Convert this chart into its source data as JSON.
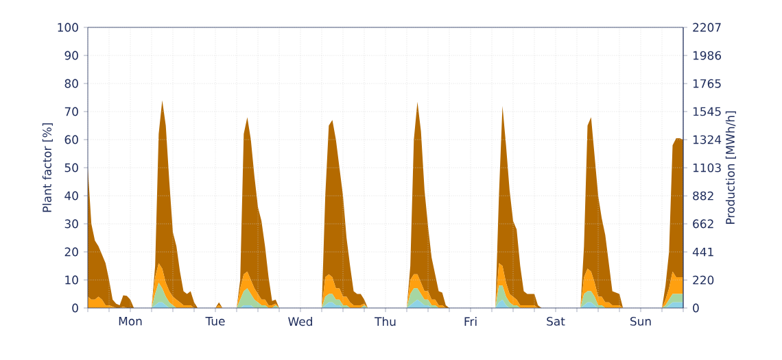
{
  "chart_data": {
    "type": "area",
    "stacked": true,
    "ylabel": "Plant factor [%]",
    "y2label": "Production [MWh/h]",
    "categories": [
      null,
      null,
      null,
      null,
      null,
      null,
      null,
      null,
      null,
      null,
      null,
      null,
      "Mon",
      null,
      null,
      null,
      null,
      null,
      null,
      null,
      null,
      null,
      null,
      null,
      null,
      null,
      null,
      null,
      null,
      null,
      null,
      null,
      null,
      null,
      null,
      null,
      "Tue",
      null,
      null,
      null,
      null,
      null,
      null,
      null,
      null,
      null,
      null,
      null,
      null,
      null,
      null,
      null,
      null,
      null,
      null,
      null,
      null,
      null,
      null,
      null,
      "Wed",
      null,
      null,
      null,
      null,
      null,
      null,
      null,
      null,
      null,
      null,
      null,
      null,
      null,
      null,
      null,
      null,
      null,
      null,
      null,
      null,
      null,
      null,
      null,
      "Thu",
      null,
      null,
      null,
      null,
      null,
      null,
      null,
      null,
      null,
      null,
      null,
      null,
      null,
      null,
      null,
      null,
      null,
      null,
      null,
      null,
      null,
      null,
      null,
      "Fri",
      null,
      null,
      null,
      null,
      null,
      null,
      null,
      null,
      null,
      null,
      null,
      null,
      null,
      null,
      null,
      null,
      null,
      null,
      null,
      null,
      null,
      null,
      null,
      "Sat",
      null,
      null,
      null,
      null,
      null,
      null,
      null,
      null,
      null,
      null,
      null,
      null,
      null,
      null,
      null,
      null,
      null,
      null,
      null,
      null,
      null,
      null,
      null,
      "Sun",
      null,
      null,
      null,
      null,
      null,
      null,
      null,
      null,
      null,
      null,
      null,
      null
    ],
    "series": [
      {
        "color": "#8fd3e6",
        "values": [
          0,
          0,
          0,
          0,
          0,
          0,
          0,
          0,
          0,
          0,
          0,
          0,
          0,
          0,
          0,
          0,
          0,
          0,
          0,
          1,
          2,
          2,
          1,
          0,
          0,
          0,
          0,
          0,
          0,
          0,
          0,
          0,
          0,
          0,
          0,
          0,
          0,
          0,
          0,
          0,
          0,
          0,
          0,
          0,
          1,
          1,
          1,
          0,
          0,
          0,
          0,
          0,
          0,
          0,
          0,
          0,
          0,
          0,
          0,
          0,
          0,
          0,
          0,
          0,
          0,
          0,
          0,
          1,
          2,
          2,
          1,
          1,
          0,
          0,
          0,
          0,
          0,
          0,
          0,
          0,
          0,
          0,
          0,
          0,
          0,
          0,
          0,
          0,
          0,
          0,
          0,
          1,
          2,
          3,
          2,
          1,
          1,
          0,
          0,
          0,
          0,
          0,
          0,
          0,
          0,
          0,
          0,
          0,
          0,
          0,
          0,
          0,
          0,
          0,
          0,
          0,
          2,
          3,
          1,
          0,
          0,
          0,
          0,
          0,
          0,
          0,
          0,
          0,
          0,
          0,
          0,
          0,
          0,
          0,
          0,
          0,
          0,
          0,
          0,
          0,
          1,
          2,
          2,
          1,
          0,
          0,
          0,
          0,
          0,
          0,
          0,
          0,
          0,
          0,
          0,
          0,
          0,
          0,
          0,
          0,
          0,
          0,
          0,
          0,
          1,
          2,
          2,
          2,
          2
        ]
      },
      {
        "color": "#a6d6a2",
        "values": [
          0,
          0,
          0,
          0,
          0,
          0,
          0,
          0,
          0,
          0,
          0,
          0,
          0,
          0,
          0,
          0,
          0,
          0,
          0,
          4,
          7,
          5,
          3,
          2,
          1,
          0,
          0,
          0,
          0,
          0,
          0,
          0,
          0,
          0,
          0,
          0,
          0,
          0,
          0,
          0,
          0,
          0,
          0,
          3,
          5,
          6,
          4,
          3,
          2,
          1,
          1,
          0,
          0,
          1,
          0,
          0,
          0,
          0,
          0,
          0,
          0,
          0,
          0,
          0,
          0,
          0,
          0,
          3,
          3,
          3,
          2,
          2,
          1,
          1,
          0,
          0,
          0,
          0,
          1,
          0,
          0,
          0,
          0,
          0,
          0,
          0,
          0,
          0,
          0,
          0,
          0,
          4,
          5,
          4,
          3,
          2,
          2,
          1,
          1,
          0,
          0,
          0,
          0,
          0,
          0,
          0,
          0,
          0,
          0,
          0,
          0,
          0,
          0,
          0,
          0,
          0,
          6,
          5,
          3,
          2,
          1,
          1,
          0,
          0,
          0,
          0,
          0,
          0,
          0,
          0,
          0,
          0,
          0,
          0,
          0,
          0,
          0,
          0,
          0,
          0,
          4,
          4,
          4,
          3,
          1,
          1,
          0,
          0,
          0,
          0,
          0,
          0,
          0,
          0,
          0,
          0,
          0,
          0,
          0,
          0,
          0,
          0,
          0,
          1,
          2,
          3,
          3,
          3,
          3
        ]
      },
      {
        "color": "#ffa010",
        "values": [
          4,
          3,
          3,
          4,
          3,
          1,
          1,
          0.5,
          0,
          0,
          0.5,
          0,
          0,
          0,
          0,
          0,
          0,
          0,
          0,
          6,
          7,
          7,
          5,
          4,
          3,
          3,
          2,
          1,
          1,
          1,
          0,
          0,
          0,
          0,
          0,
          0,
          0,
          1,
          0,
          0,
          0,
          0,
          0,
          4,
          6,
          6,
          5,
          4,
          3,
          2,
          2,
          1,
          1,
          0.5,
          0,
          0,
          0,
          0,
          0,
          0,
          0,
          0,
          0,
          0,
          0,
          0,
          0,
          7,
          7,
          6,
          4,
          4,
          3,
          3,
          2,
          1,
          1,
          1,
          0.5,
          0,
          0,
          0,
          0,
          0,
          0,
          0,
          0,
          0,
          0,
          0,
          0,
          5,
          5,
          5,
          4,
          3,
          3,
          2,
          2,
          1,
          1,
          0,
          0,
          0,
          0,
          0,
          0,
          0,
          0,
          0,
          0,
          0,
          0,
          0,
          0,
          0,
          8,
          7,
          5,
          3,
          3,
          2,
          1,
          1,
          1,
          1,
          1,
          0,
          0,
          0,
          0,
          0,
          0,
          0,
          0,
          0,
          0,
          0,
          0,
          0,
          6,
          8,
          7,
          5,
          3,
          3,
          2,
          2,
          1,
          1,
          1,
          0,
          0,
          0,
          0,
          0,
          0,
          0,
          0,
          0,
          0,
          0,
          0,
          2,
          4,
          8,
          6,
          6,
          6
        ]
      },
      {
        "color": "#b46a00",
        "values": [
          46,
          27,
          21,
          18,
          16,
          15,
          9,
          2.5,
          1.5,
          1,
          4,
          4.3,
          3,
          0,
          0,
          0,
          0,
          0,
          0,
          4,
          46,
          60,
          56,
          39,
          23,
          19,
          11,
          5,
          4,
          5,
          2,
          0,
          0,
          0,
          0,
          0,
          0,
          1,
          0,
          0,
          0,
          0,
          0,
          3,
          50,
          55,
          50,
          40,
          31,
          28,
          19,
          10,
          1.5,
          1.5,
          0,
          0,
          0,
          0,
          0,
          0,
          0,
          0,
          0,
          0,
          0,
          0,
          0,
          29,
          53,
          56,
          53,
          43,
          36,
          21,
          13,
          5,
          4,
          4,
          1.5,
          0,
          0,
          0,
          0,
          0,
          0,
          0,
          0,
          0,
          0,
          0,
          0,
          5,
          48,
          61.5,
          54,
          36,
          23,
          15,
          9,
          5,
          4.5,
          1,
          0,
          0,
          0,
          0,
          0,
          0,
          0,
          0,
          0,
          0,
          0,
          0,
          0,
          0,
          24,
          57,
          49,
          37,
          27,
          25,
          14,
          5,
          4,
          4,
          4,
          1,
          0,
          0,
          0,
          0,
          0,
          0,
          0,
          0,
          0,
          0,
          0,
          0,
          11,
          51,
          55,
          45,
          36,
          28,
          24,
          14,
          5,
          4.5,
          4,
          0,
          0,
          0,
          0,
          0,
          0,
          0,
          0,
          0,
          0,
          0,
          0,
          5,
          13,
          45,
          49.5,
          49.5,
          49
        ]
      }
    ],
    "ylim": [
      0,
      100
    ],
    "yticks": [
      0,
      10,
      20,
      30,
      40,
      50,
      60,
      70,
      80,
      90,
      100
    ],
    "y2lim": [
      0,
      2207
    ],
    "y2ticks": [
      0,
      220,
      441,
      662,
      882,
      1103,
      1324,
      1545,
      1765,
      1986,
      2207
    ],
    "grid": true
  }
}
